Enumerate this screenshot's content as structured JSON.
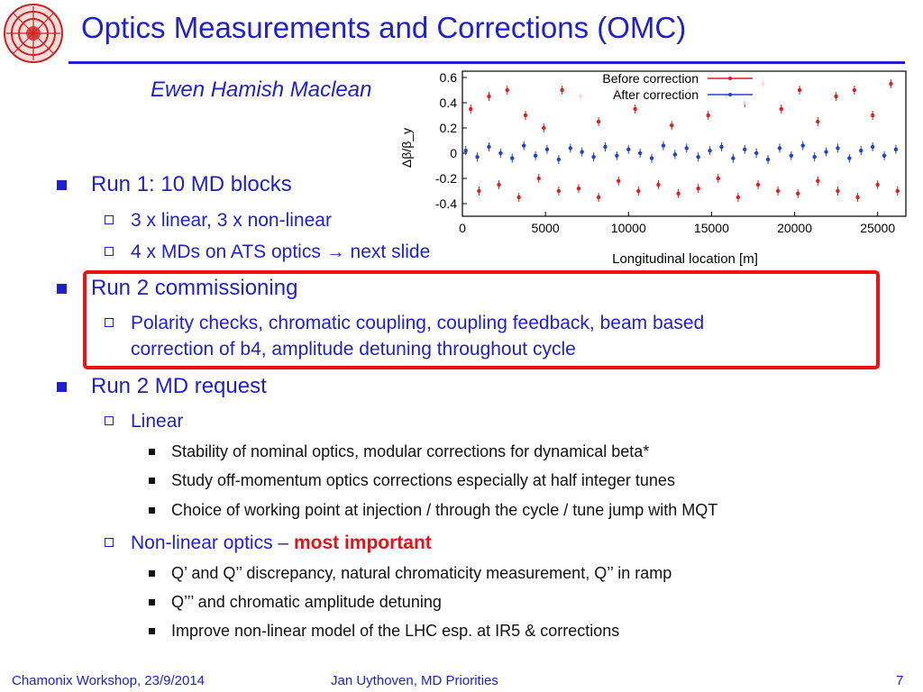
{
  "slide": {
    "title": "Optics Measurements and Corrections (OMC)",
    "author": "Ewen Hamish Maclean",
    "accent_color": "#1e1ed2",
    "highlight_color": "#ee1111"
  },
  "bullets": {
    "run1": "Run 1: 10 MD blocks",
    "run1_sub1": "3 x linear, 3 x non-linear",
    "run1_sub2_text": "4 x MDs on ATS optics",
    "run1_sub2_arrow": "→",
    "run1_sub2_link": "next slide",
    "run2_comm": "Run 2 commissioning",
    "run2_comm_sub_line1": "Polarity checks, chromatic coupling, coupling feedback, beam based",
    "run2_comm_sub_line2": "correction of b4, amplitude detuning throughout cycle",
    "run2_md": "Run 2 MD request",
    "linear": "Linear",
    "linear_items": [
      "Stability of nominal optics, modular corrections for dynamical beta*",
      "Study off-momentum optics corrections especially at half integer tunes",
      "Choice of working point at injection / through the cycle / tune jump with MQT"
    ],
    "nonlinear_prefix": "Non-linear optics –",
    "nonlinear_emph": "most important",
    "nonlinear_items": [
      "Q’ and Q’’ discrepancy, natural chromaticity measurement, Q’’ in ramp",
      "Q’’’ and chromatic amplitude detuning",
      "Improve non-linear model of the LHC esp. at IR5 & corrections"
    ]
  },
  "footer": {
    "left": "Chamonix Workshop, 23/9/2014",
    "center": "Jan Uythoven, MD Priorities",
    "page": "7"
  },
  "chart_data": {
    "type": "scatter",
    "xlabel": "Longitudinal location [m]",
    "ylabel": "Δβ/β_y",
    "xlim": [
      0,
      26700
    ],
    "ylim": [
      -0.5,
      0.65
    ],
    "xticks": [
      0,
      5000,
      10000,
      15000,
      20000,
      25000
    ],
    "yticks": [
      -0.4,
      -0.2,
      0,
      0.2,
      0.4,
      0.6
    ],
    "xtick_labels": [
      "0",
      "5000",
      "10000",
      "15000",
      "20000",
      "25000"
    ],
    "ytick_labels": [
      "-0.4",
      "-0.2",
      "0",
      "0.2",
      "0.4",
      "0.6"
    ],
    "legend_position": "top-right",
    "grid": false,
    "series": [
      {
        "name": "Before correction",
        "color": "#e41a1c",
        "marker": "point-with-errorbar",
        "x": [
          500,
          1600,
          2700,
          3800,
          4900,
          6000,
          7100,
          8200,
          9300,
          10400,
          11500,
          12600,
          13700,
          14800,
          15900,
          17000,
          18100,
          19200,
          20300,
          21400,
          22500,
          23600,
          24700,
          25800,
          1000,
          2200,
          3400,
          4600,
          5800,
          7000,
          8200,
          9400,
          10600,
          11800,
          13000,
          14200,
          15400,
          16600,
          17800,
          19000,
          20200,
          21400,
          22600,
          23800,
          25000,
          26200
        ],
        "values": [
          0.35,
          0.45,
          0.5,
          0.3,
          0.2,
          0.5,
          0.45,
          0.25,
          0.5,
          0.35,
          0.45,
          0.22,
          0.5,
          0.3,
          0.45,
          0.4,
          0.55,
          0.35,
          0.5,
          0.25,
          0.45,
          0.5,
          0.3,
          0.55,
          -0.3,
          -0.25,
          -0.35,
          -0.2,
          -0.3,
          -0.28,
          -0.35,
          -0.22,
          -0.3,
          -0.25,
          -0.32,
          -0.28,
          -0.2,
          -0.35,
          -0.25,
          -0.3,
          -0.32,
          -0.22,
          -0.3,
          -0.35,
          -0.25,
          -0.3
        ]
      },
      {
        "name": "After correction",
        "color": "#1f3fdc",
        "marker": "point-with-errorbar",
        "x": [
          200,
          900,
          1600,
          2300,
          3000,
          3700,
          4400,
          5100,
          5800,
          6500,
          7200,
          7900,
          8600,
          9300,
          10000,
          10700,
          11400,
          12100,
          12800,
          13500,
          14200,
          14900,
          15600,
          16300,
          17000,
          17700,
          18400,
          19100,
          19800,
          20500,
          21200,
          21900,
          22600,
          23300,
          24000,
          24700,
          25400,
          26100
        ],
        "values": [
          0.02,
          -0.03,
          0.05,
          0.0,
          -0.04,
          0.06,
          -0.02,
          0.03,
          -0.05,
          0.04,
          0.01,
          -0.03,
          0.05,
          -0.02,
          0.03,
          0.0,
          -0.04,
          0.06,
          -0.01,
          0.04,
          -0.03,
          0.02,
          0.05,
          -0.04,
          0.03,
          0.0,
          -0.05,
          0.04,
          -0.02,
          0.06,
          -0.03,
          0.01,
          0.04,
          -0.04,
          0.02,
          0.05,
          -0.02,
          0.03
        ]
      }
    ]
  }
}
